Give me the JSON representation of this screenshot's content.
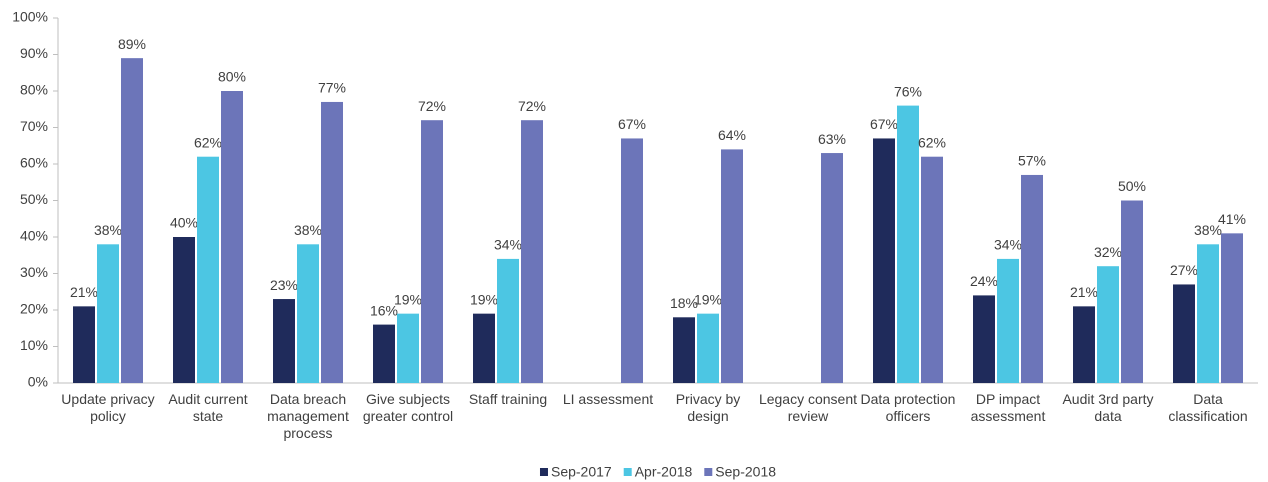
{
  "chart_data": {
    "type": "bar",
    "categories": [
      "Update privacy policy",
      "Audit current state",
      "Data breach management process",
      "Give subjects greater control",
      "Staff training",
      "LI assessment",
      "Privacy by design",
      "Legacy consent review",
      "Data protection officers",
      "DP impact assessment",
      "Audit 3rd party data",
      "Data classification"
    ],
    "series": [
      {
        "name": "Sep-2017",
        "color": "#1f2b5b",
        "values": [
          21,
          40,
          23,
          16,
          19,
          null,
          18,
          null,
          67,
          24,
          21,
          27
        ],
        "value_labels": [
          "21%",
          "40%",
          "23%",
          "16%",
          "19%",
          null,
          "18%",
          null,
          "67%",
          "24%",
          "21%",
          "27%"
        ]
      },
      {
        "name": "Apr-2018",
        "color": "#4cc6e3",
        "values": [
          38,
          62,
          38,
          19,
          34,
          null,
          19,
          null,
          76,
          34,
          32,
          38
        ],
        "value_labels": [
          "38%",
          "62%",
          "38%",
          "19%",
          "34%",
          null,
          "19%",
          null,
          "76%",
          "34%",
          "32%",
          "38%"
        ]
      },
      {
        "name": "Sep-2018",
        "color": "#6c75b9",
        "values": [
          89,
          80,
          77,
          72,
          72,
          67,
          64,
          63,
          62,
          57,
          50,
          41
        ],
        "value_labels": [
          "89%",
          "80%",
          "77%",
          "72%",
          "72%",
          "67%",
          "64%",
          "63%",
          "62%",
          "57%",
          "50%",
          "41%"
        ]
      }
    ],
    "ylim": [
      0,
      100
    ],
    "yticks": [
      {
        "value": 0,
        "label": "0%"
      },
      {
        "value": 10,
        "label": "10%"
      },
      {
        "value": 20,
        "label": "20%"
      },
      {
        "value": 30,
        "label": "30%"
      },
      {
        "value": 40,
        "label": "40%"
      },
      {
        "value": 50,
        "label": "50%"
      },
      {
        "value": 60,
        "label": "60%"
      },
      {
        "value": 70,
        "label": "70%"
      },
      {
        "value": 80,
        "label": "80%"
      },
      {
        "value": 90,
        "label": "90%"
      },
      {
        "value": 100,
        "label": "100%"
      }
    ],
    "legend": "bottom"
  }
}
